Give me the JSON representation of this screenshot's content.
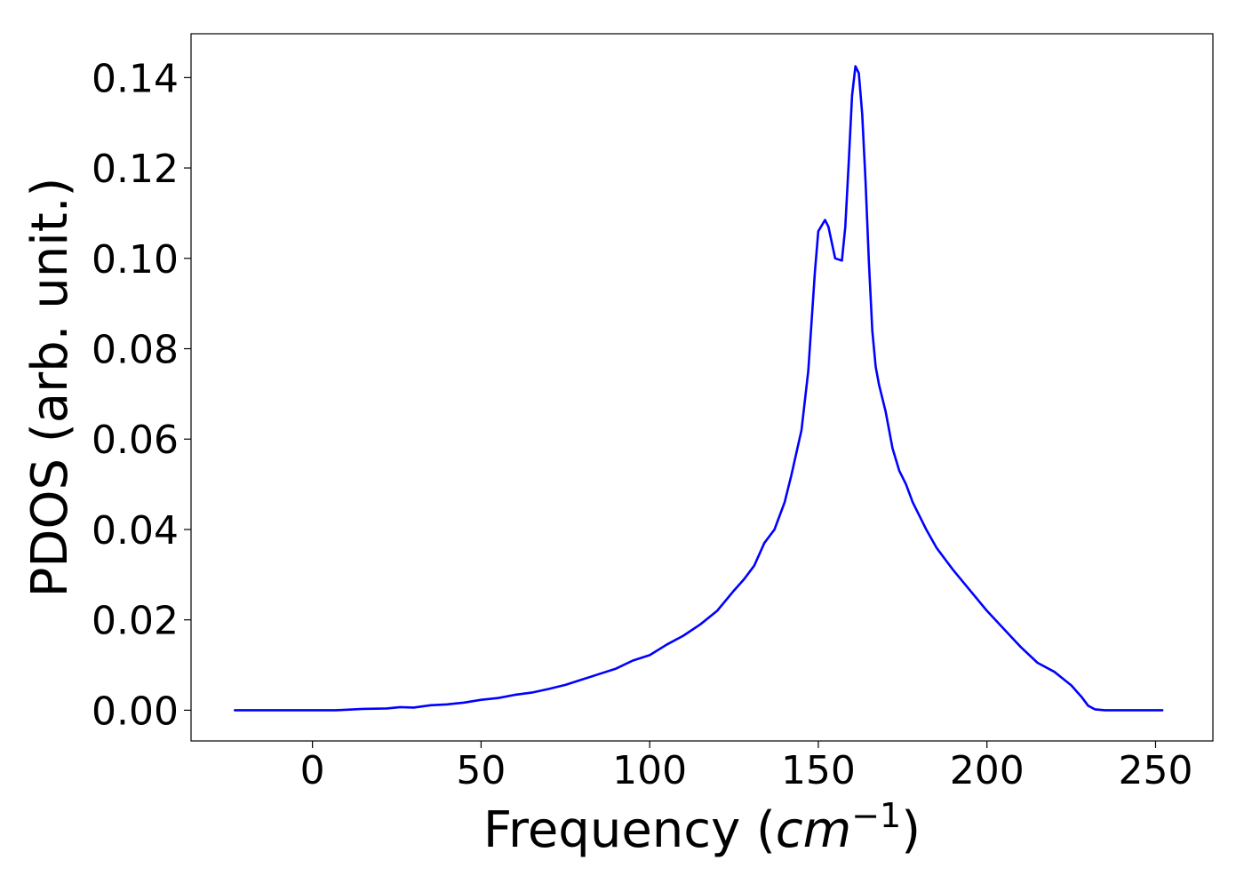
{
  "chart_data": {
    "type": "line",
    "title": "",
    "xlabel": "Frequency (",
    "xlabel_math": "cm",
    "xlabel_sup": "−1",
    "xlabel_close": ")",
    "ylabel": "PDOS (arb. unit.)",
    "xlim": [
      -36,
      267
    ],
    "ylim": [
      -0.0068,
      0.1497
    ],
    "x_ticks": [
      0,
      50,
      100,
      150,
      200,
      250
    ],
    "x_tick_labels": [
      "0",
      "50",
      "100",
      "150",
      "200",
      "250"
    ],
    "y_ticks": [
      0.0,
      0.02,
      0.04,
      0.06,
      0.08,
      0.1,
      0.12,
      0.14
    ],
    "y_tick_labels": [
      "0.00",
      "0.02",
      "0.04",
      "0.06",
      "0.08",
      "0.10",
      "0.12",
      "0.14"
    ],
    "grid": false,
    "legend": "none",
    "series": [
      {
        "color": "#0000ff",
        "x": [
          -23,
          0,
          7,
          15,
          22,
          26,
          30,
          35,
          40,
          45,
          50,
          55,
          60,
          65,
          70,
          75,
          80,
          85,
          90,
          95,
          100,
          105,
          110,
          115,
          120,
          125,
          128,
          131,
          134,
          137,
          140,
          142,
          145,
          147,
          149,
          150,
          152,
          153,
          155,
          157,
          158,
          159,
          160,
          161,
          162,
          163,
          164,
          165,
          166,
          167,
          168,
          170,
          172,
          174,
          176,
          178,
          180,
          182,
          185,
          188,
          190,
          195,
          200,
          205,
          210,
          215,
          220,
          225,
          228,
          230,
          232,
          235,
          240,
          252
        ],
        "y": [
          0.0,
          0.0,
          0.0,
          0.0003,
          0.0004,
          0.0007,
          0.0006,
          0.0011,
          0.0013,
          0.0017,
          0.0023,
          0.0027,
          0.0034,
          0.0039,
          0.0047,
          0.0056,
          0.0068,
          0.008,
          0.0092,
          0.011,
          0.0122,
          0.0145,
          0.0165,
          0.019,
          0.022,
          0.0265,
          0.029,
          0.032,
          0.037,
          0.04,
          0.046,
          0.052,
          0.062,
          0.075,
          0.097,
          0.106,
          0.1085,
          0.107,
          0.1,
          0.0995,
          0.107,
          0.121,
          0.136,
          0.1425,
          0.141,
          0.132,
          0.117,
          0.099,
          0.084,
          0.076,
          0.072,
          0.066,
          0.058,
          0.053,
          0.05,
          0.046,
          0.043,
          0.04,
          0.036,
          0.033,
          0.031,
          0.0265,
          0.022,
          0.018,
          0.014,
          0.0105,
          0.0085,
          0.0055,
          0.003,
          0.001,
          0.0002,
          0.0,
          0.0,
          0.0
        ]
      }
    ]
  }
}
